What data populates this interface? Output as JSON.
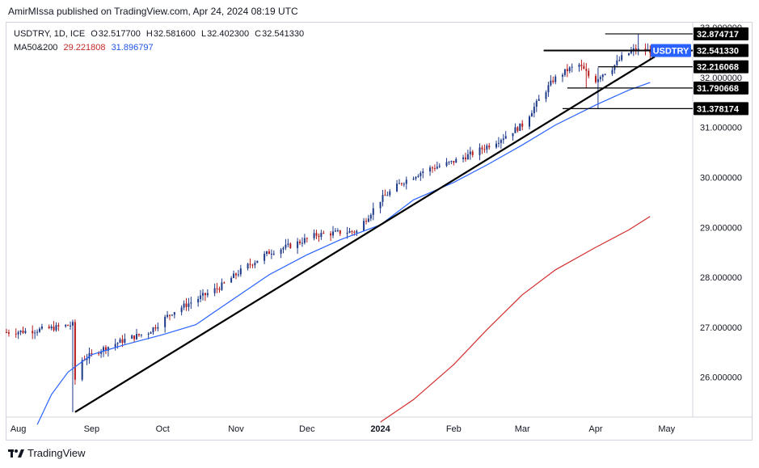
{
  "header": {
    "text": "AmirMIssa published on TradingView.com, Apr 24, 2024 08:19 UTC"
  },
  "legend": {
    "symbol": "USDTRY, 1D, ICE",
    "o_label": "O",
    "o_value": "32.517700",
    "h_label": "H",
    "h_value": "32.581600",
    "l_label": "L",
    "l_value": "32.402300",
    "c_label": "C",
    "c_value": "32.541330",
    "ma_label": "MA50&200",
    "ma200_value": "29.221808",
    "ma50_value": "31.896797"
  },
  "footer": {
    "brand": "TradingView"
  },
  "colors": {
    "up": "#1e3a8a",
    "down": "#b71c1c",
    "ma50": "#2962ff",
    "ma200": "#d32f2f",
    "trend": "#000000",
    "tag_bg": "#000000",
    "symbol_tag_bg": "#2962ff"
  },
  "chart_data": {
    "type": "candlestick",
    "symbol": "USDTRY",
    "timeframe": "1D",
    "ylim": [
      25.2,
      33.1
    ],
    "y_ticks": [
      {
        "value": 26.0,
        "label": "26.000000"
      },
      {
        "value": 27.0,
        "label": "27.000000"
      },
      {
        "value": 28.0,
        "label": "28.000000"
      },
      {
        "value": 29.0,
        "label": "29.000000"
      },
      {
        "value": 30.0,
        "label": "30.000000"
      },
      {
        "value": 31.0,
        "label": "31.000000"
      },
      {
        "value": 32.0,
        "label": "32.000000"
      },
      {
        "value": 33.0,
        "label": "33.000000"
      }
    ],
    "x_range": [
      "2023-07-27",
      "2024-05-12"
    ],
    "x_ticks": [
      {
        "date": "2023-08-01",
        "label": "Aug",
        "bold": false
      },
      {
        "date": "2023-09-01",
        "label": "Sep",
        "bold": false
      },
      {
        "date": "2023-10-01",
        "label": "Oct",
        "bold": false
      },
      {
        "date": "2023-11-01",
        "label": "Nov",
        "bold": false
      },
      {
        "date": "2023-12-01",
        "label": "Dec",
        "bold": false
      },
      {
        "date": "2024-01-01",
        "label": "2024",
        "bold": true
      },
      {
        "date": "2024-02-01",
        "label": "Feb",
        "bold": false
      },
      {
        "date": "2024-03-01",
        "label": "Mar",
        "bold": false
      },
      {
        "date": "2024-04-01",
        "label": "Apr",
        "bold": false
      },
      {
        "date": "2024-05-01",
        "label": "May",
        "bold": false
      }
    ],
    "close_path": [
      [
        "2023-07-27",
        26.9
      ],
      [
        "2023-08-05",
        26.92
      ],
      [
        "2023-08-15",
        26.98
      ],
      [
        "2023-08-24",
        27.05
      ],
      [
        "2023-08-25",
        25.95
      ],
      [
        "2023-08-28",
        26.35
      ],
      [
        "2023-09-05",
        26.55
      ],
      [
        "2023-09-15",
        26.75
      ],
      [
        "2023-09-25",
        26.9
      ],
      [
        "2023-10-05",
        27.3
      ],
      [
        "2023-10-15",
        27.55
      ],
      [
        "2023-10-25",
        27.8
      ],
      [
        "2023-11-05",
        28.2
      ],
      [
        "2023-11-15",
        28.5
      ],
      [
        "2023-11-25",
        28.65
      ],
      [
        "2023-12-05",
        28.85
      ],
      [
        "2023-12-15",
        28.9
      ],
      [
        "2023-12-22",
        28.92
      ],
      [
        "2024-01-01",
        29.55
      ],
      [
        "2024-01-10",
        29.9
      ],
      [
        "2024-01-20",
        30.15
      ],
      [
        "2024-01-31",
        30.3
      ],
      [
        "2024-02-10",
        30.5
      ],
      [
        "2024-02-20",
        30.75
      ],
      [
        "2024-03-01",
        31.05
      ],
      [
        "2024-03-08",
        31.55
      ],
      [
        "2024-03-14",
        31.95
      ],
      [
        "2024-03-20",
        32.15
      ],
      [
        "2024-03-25",
        32.25
      ],
      [
        "2024-03-28",
        32.1
      ],
      [
        "2024-03-31",
        31.9
      ],
      [
        "2024-04-03",
        32.05
      ],
      [
        "2024-04-08",
        32.2
      ],
      [
        "2024-04-12",
        32.4
      ],
      [
        "2024-04-17",
        32.55
      ],
      [
        "2024-04-24",
        32.54
      ]
    ],
    "ma50": [
      [
        "2023-08-09",
        25.05
      ],
      [
        "2023-08-15",
        25.65
      ],
      [
        "2023-08-22",
        26.1
      ],
      [
        "2023-09-01",
        26.45
      ],
      [
        "2023-09-15",
        26.65
      ],
      [
        "2023-10-01",
        26.85
      ],
      [
        "2023-10-15",
        27.05
      ],
      [
        "2023-11-01",
        27.6
      ],
      [
        "2023-11-15",
        28.05
      ],
      [
        "2023-12-01",
        28.45
      ],
      [
        "2023-12-15",
        28.75
      ],
      [
        "2024-01-01",
        29.05
      ],
      [
        "2024-01-15",
        29.55
      ],
      [
        "2024-02-01",
        29.9
      ],
      [
        "2024-02-15",
        30.25
      ],
      [
        "2024-03-01",
        30.65
      ],
      [
        "2024-03-15",
        31.05
      ],
      [
        "2024-04-01",
        31.45
      ],
      [
        "2024-04-15",
        31.75
      ],
      [
        "2024-04-24",
        31.9
      ]
    ],
    "ma200": [
      [
        "2024-01-01",
        25.1
      ],
      [
        "2024-01-15",
        25.55
      ],
      [
        "2024-02-01",
        26.25
      ],
      [
        "2024-02-15",
        26.95
      ],
      [
        "2024-03-01",
        27.65
      ],
      [
        "2024-03-15",
        28.15
      ],
      [
        "2024-04-01",
        28.6
      ],
      [
        "2024-04-15",
        28.95
      ],
      [
        "2024-04-24",
        29.22
      ]
    ],
    "trendline": {
      "from": [
        "2023-08-25",
        25.3
      ],
      "to": [
        "2024-04-26",
        32.42
      ]
    },
    "horizontal_levels": [
      {
        "value": 32.874717,
        "label": "32.874717",
        "from": "2024-04-05"
      },
      {
        "value": 32.54133,
        "label": "32.541330",
        "from": "2024-03-10",
        "is_price": true
      },
      {
        "value": 32.216068,
        "label": "32.216068",
        "from": "2024-04-02"
      },
      {
        "value": 31.790668,
        "label": "31.790668",
        "from": "2024-03-20"
      },
      {
        "value": 31.378174,
        "label": "31.378174",
        "from": "2024-03-18"
      }
    ],
    "symbol_tag": "USDTRY",
    "last_price": 32.54133
  }
}
